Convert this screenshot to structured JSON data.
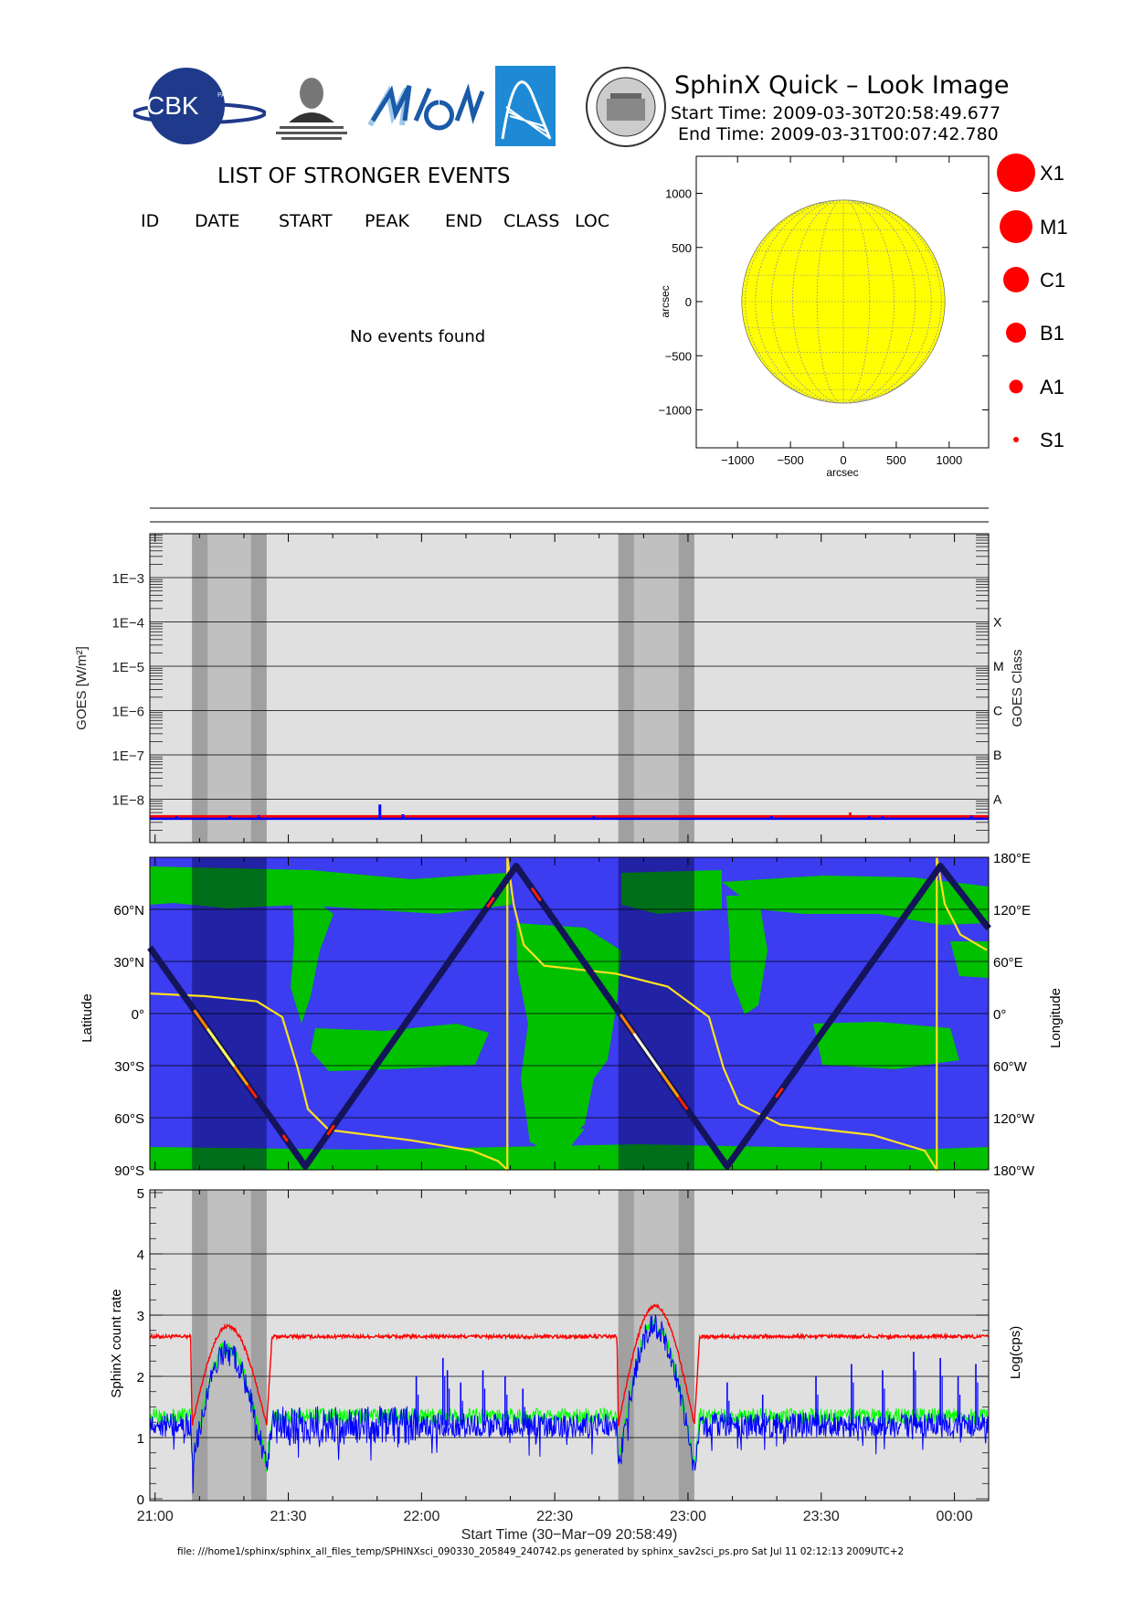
{
  "header": {
    "title": "SphinX Quick – Look Image",
    "start_time": "Start Time: 2009-03-30T20:58:49.677",
    "end_time": "End Time: 2009-03-31T00:07:42.780"
  },
  "logos": {
    "cbk": "CBK PAN",
    "lebedev": "P.N.Lebedev Physical Institute of the Russian Academy of Science",
    "mifi": "MIFI"
  },
  "events": {
    "title": "LIST OF STRONGER EVENTS",
    "columns": [
      "ID",
      "DATE",
      "START",
      "PEAK",
      "END",
      "CLASS",
      "LOC"
    ],
    "empty_message": "No events found"
  },
  "colors": {
    "sun": "#ffff00",
    "goes_red": "#ff0000",
    "goes_blue": "#0000ff",
    "map_blue": "#3c3cf0",
    "map_green": "#00c000",
    "track": "#14145a",
    "lon_curve": "#ffe020",
    "bg_gray": "#e0e0e0",
    "band_light": "#c0c0c0",
    "band_dark": "#a0a0a0"
  },
  "chart_data": [
    {
      "type": "scatter",
      "name": "sun-map",
      "xlabel": "arcsec",
      "ylabel": "arcsec",
      "xlim": [
        -1380,
        1380
      ],
      "ylim": [
        -1380,
        1380
      ],
      "xticks": [
        -1000,
        -500,
        0,
        500,
        1000
      ],
      "yticks": [
        1000,
        500,
        0,
        -500,
        -1000
      ],
      "xtick_labels": [
        "−1000",
        "−500",
        "0",
        "500",
        "1000"
      ],
      "ytick_labels": [
        "1000",
        "500",
        "0",
        "−500",
        "−1000"
      ],
      "sun_radius_arcsec": 960,
      "legend": [
        {
          "label": "X1",
          "size": 6
        },
        {
          "label": "M1",
          "size": 5
        },
        {
          "label": "C1",
          "size": 4
        },
        {
          "label": "B1",
          "size": 3
        },
        {
          "label": "A1",
          "size": 2
        },
        {
          "label": "S1",
          "size": 1
        }
      ],
      "events": []
    },
    {
      "type": "line",
      "name": "goes-flux",
      "ylabel": "GOES [W/m²]",
      "ylabel_right": "GOES Class",
      "yscale": "log",
      "ylim_log10": [
        -9,
        -2
      ],
      "yticks_log10": [
        -3,
        -4,
        -5,
        -6,
        -7,
        -8
      ],
      "ytick_labels": [
        "1E−3",
        "1E−4",
        "1E−5",
        "1E−6",
        "1E−7",
        "1E−8"
      ],
      "class_labels": [
        {
          "label": "X",
          "log10": -4
        },
        {
          "label": "M",
          "log10": -5
        },
        {
          "label": "C",
          "log10": -6
        },
        {
          "label": "B",
          "log10": -7
        },
        {
          "label": "A",
          "log10": -8
        }
      ],
      "series": [
        {
          "name": "GOES long",
          "color": "#ff0000",
          "baseline_log10": -8.41,
          "spikes": [
            [
              157.7,
              -8.3
            ]
          ]
        },
        {
          "name": "GOES short",
          "color": "#0000ff",
          "baseline_log10": -8.44,
          "spikes": [
            [
              6,
              -8.38
            ],
            [
              18,
              -8.38
            ],
            [
              24.5,
              -8.36
            ],
            [
              51.8,
              -8.12
            ],
            [
              57,
              -8.34
            ],
            [
              100,
              -8.38
            ],
            [
              140,
              -8.38
            ],
            [
              162,
              -8.38
            ],
            [
              165,
              -8.38
            ],
            [
              185,
              -8.37
            ]
          ]
        }
      ]
    },
    {
      "type": "line",
      "name": "orbit-track",
      "ylabel": "Latitude",
      "ylabel_right": "Longitude",
      "ylim": [
        -90,
        90
      ],
      "yticks": [
        60,
        30,
        0,
        -30,
        -60,
        -90
      ],
      "ytick_labels": [
        "60°N",
        "30°N",
        "0°",
        "30°S",
        "60°S",
        "90°S"
      ],
      "right_ticks": [
        180,
        120,
        60,
        0,
        -60,
        -120,
        -180
      ],
      "right_tick_labels": [
        "180°E",
        "120°E",
        "60°E",
        "0°",
        "60°W",
        "120°W",
        "180°W"
      ],
      "latitude_track": [
        [
          0,
          38
        ],
        [
          35,
          -88
        ],
        [
          82.5,
          85
        ],
        [
          130,
          -88
        ],
        [
          178,
          85
        ],
        [
          188.9,
          49
        ]
      ],
      "longitude_track": [
        [
          0,
          23
        ],
        [
          12.5,
          20
        ],
        [
          24.1,
          14
        ],
        [
          29.8,
          -4
        ],
        [
          33.3,
          -63
        ],
        [
          35.6,
          -110
        ],
        [
          40.3,
          -134
        ],
        [
          58.8,
          -146
        ],
        [
          72.6,
          -158
        ],
        [
          78.4,
          -170
        ],
        [
          80.5,
          -180
        ],
        [
          80.5,
          180
        ],
        [
          81.9,
          126
        ],
        [
          84.2,
          79
        ],
        [
          88.8,
          55
        ],
        [
          104.9,
          46
        ],
        [
          116.6,
          31
        ],
        [
          125.9,
          -4
        ],
        [
          129.2,
          -63
        ],
        [
          132.7,
          -104
        ],
        [
          142,
          -128
        ],
        [
          162.8,
          -140
        ],
        [
          174.5,
          -158
        ],
        [
          177.2,
          -180
        ],
        [
          177.2,
          180
        ],
        [
          179,
          126
        ],
        [
          182.5,
          91
        ],
        [
          188.5,
          73
        ]
      ]
    },
    {
      "type": "line",
      "name": "sphinx-count-rate",
      "ylabel": "SphinX count rate",
      "ylabel_right": "Log(cps)",
      "ylim": [
        0,
        5
      ],
      "yticks": [
        0,
        1,
        2,
        3,
        4,
        5
      ],
      "ytick_labels": [
        "0",
        "1",
        "2",
        "3",
        "4",
        "5"
      ],
      "xlabel": "Start Time (30−Mar−09 20:58:49)",
      "xlim_minutes": [
        0,
        188.88
      ],
      "xticks_minutes": [
        1.18,
        31.18,
        61.18,
        91.18,
        121.18,
        151.18,
        181.18
      ],
      "xtick_labels": [
        "21:00",
        "21:30",
        "22:00",
        "22:30",
        "23:00",
        "23:30",
        "00:00"
      ],
      "shaded_intervals_minutes": [
        [
          9.5,
          26.3
        ],
        [
          105.5,
          122.6
        ]
      ],
      "series": [
        {
          "name": "red channel",
          "color": "#ff0000",
          "baseline": 2.65,
          "humps": [
            [
              17.6,
              2.82
            ],
            [
              113.8,
              3.15
            ]
          ],
          "dip": 1.2
        },
        {
          "name": "green channel",
          "color": "#00ff00",
          "baseline": 1.35,
          "humps": [
            [
              17.2,
              2.45
            ],
            [
              113.5,
              2.85
            ]
          ],
          "dip": 0.55
        },
        {
          "name": "blue channel",
          "color": "#0000ff",
          "baseline": 1.2,
          "humps": [
            [
              17.2,
              2.4
            ],
            [
              113.5,
              2.82
            ]
          ],
          "dip": 0.5,
          "spikes": [
            [
              60,
              2.0
            ],
            [
              66,
              2.3
            ],
            [
              67,
              2.1
            ],
            [
              70,
              1.9
            ],
            [
              75,
              2.1
            ],
            [
              80,
              2.0
            ],
            [
              84,
              1.8
            ],
            [
              130,
              1.9
            ],
            [
              138,
              1.7
            ],
            [
              150,
              2.0
            ],
            [
              158,
              2.2
            ],
            [
              165,
              2.1
            ],
            [
              172,
              2.4
            ],
            [
              178,
              2.3
            ],
            [
              182,
              2.0
            ],
            [
              186,
              2.2
            ]
          ]
        }
      ]
    }
  ],
  "footer": {
    "file_note": "file: ///home1/sphinx/sphinx_all_files_temp/SPHINXsci_090330_205849_240742.ps generated by sphinx_sav2sci_ps.pro Sat Jul 11 02:12:13 2009UTC+2"
  }
}
